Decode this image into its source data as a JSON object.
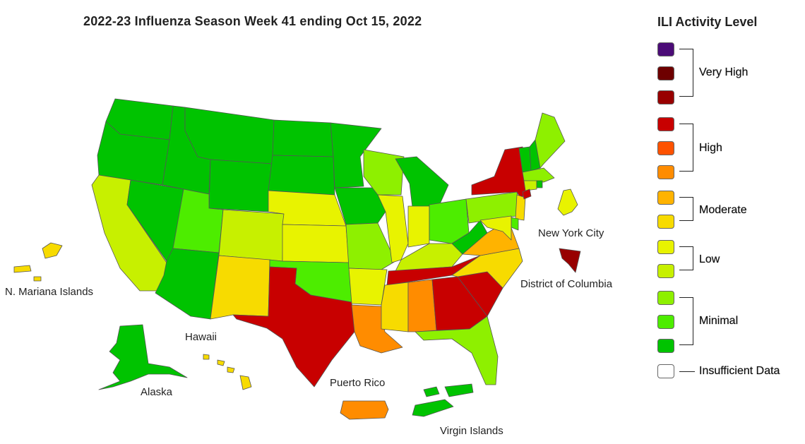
{
  "title": "2022-23 Influenza Season Week 41 ending Oct 15, 2022",
  "legend": {
    "title": "ILI Activity Level",
    "levels": [
      {
        "level": 13,
        "color": "#4b0c77"
      },
      {
        "level": 12,
        "color": "#6e0000"
      },
      {
        "level": 11,
        "color": "#980000"
      },
      {
        "level": 10,
        "color": "#c80000"
      },
      {
        "level": 9,
        "color": "#fe5200"
      },
      {
        "level": 8,
        "color": "#ff8c00"
      },
      {
        "level": 7,
        "color": "#ffb300"
      },
      {
        "level": 6,
        "color": "#f7db00"
      },
      {
        "level": 5,
        "color": "#e8f300"
      },
      {
        "level": 4,
        "color": "#c7f000"
      },
      {
        "level": 3,
        "color": "#8ef000"
      },
      {
        "level": 2,
        "color": "#4ded00"
      },
      {
        "level": 1,
        "color": "#00c300"
      },
      {
        "level": 0,
        "color": "#ffffff"
      }
    ],
    "groups": {
      "very_high": "Very High",
      "high": "High",
      "moderate": "Moderate",
      "low": "Low",
      "minimal": "Minimal",
      "insufficient": "Insufficient Data"
    }
  },
  "labels": {
    "nyc": "New York City",
    "dc": "District of Columbia",
    "nmi": "N. Mariana Islands",
    "hawaii": "Hawaii",
    "alaska": "Alaska",
    "puerto_rico": "Puerto Rico",
    "virgin_islands": "Virgin Islands"
  },
  "regions": {
    "WA": 1,
    "OR": 1,
    "CA": 4,
    "NV": 1,
    "ID": 1,
    "MT": 1,
    "WY": 1,
    "UT": 2,
    "AZ": 1,
    "CO": 4,
    "NM": 6,
    "ND": 1,
    "SD": 1,
    "NE": 5,
    "KS": 5,
    "OK": 2,
    "TX": 10,
    "MN": 1,
    "IA": 1,
    "MO": 3,
    "AR": 5,
    "LA": 8,
    "WI": 3,
    "IL": 5,
    "MI": 1,
    "IN": 5,
    "OH": 2,
    "KY": 4,
    "TN": 10,
    "MS": 6,
    "AL": 8,
    "GA": 10,
    "FL": 3,
    "SC": 10,
    "NC": 6,
    "VA": 7,
    "WV": 1,
    "PA": 3,
    "NY": 10,
    "NJ": 6,
    "DE": 2,
    "MD": 5,
    "VT": 1,
    "NH": 1,
    "ME": 3,
    "MA": 3,
    "CT": 4,
    "RI": 1,
    "NYC": 10,
    "DC": 11,
    "AK": 1,
    "HI": 6,
    "NMI": 6,
    "PR": 8,
    "VI": 1
  }
}
